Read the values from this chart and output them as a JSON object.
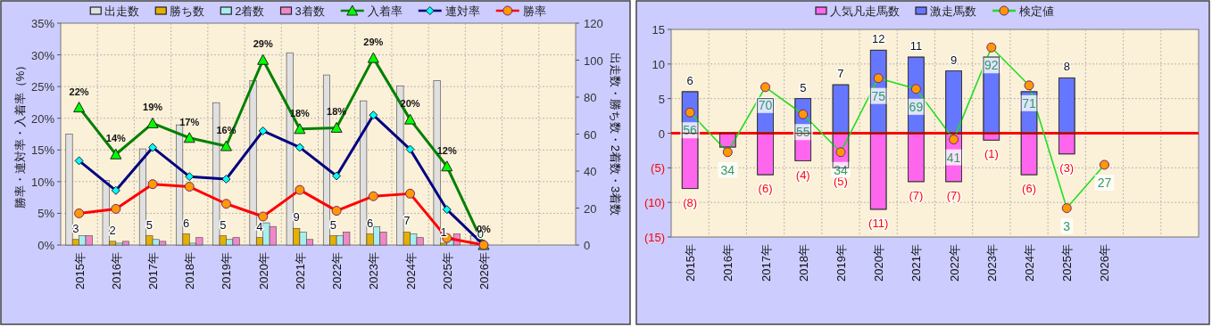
{
  "chart_data": [
    {
      "type": "bar",
      "legend": "top",
      "grid": true,
      "categories": [
        "2015年",
        "2016年",
        "2017年",
        "2018年",
        "2019年",
        "2020年",
        "2021年",
        "2022年",
        "2023年",
        "2024年",
        "2025年",
        "2026年",
        null,
        null
      ],
      "ylabel": "勝率・連対率・入着率（%）",
      "y2label": "出走数・勝ち数・2着数・3着数",
      "ylim": [
        0,
        35
      ],
      "yticks": [
        {
          "value": 0,
          "label": "0%"
        },
        {
          "value": 5,
          "label": "5%"
        },
        {
          "value": 10,
          "label": "10%"
        },
        {
          "value": 15,
          "label": "15%"
        },
        {
          "value": 20,
          "label": "20%"
        },
        {
          "value": 25,
          "label": "25%"
        },
        {
          "value": 30,
          "label": "30%"
        },
        {
          "value": 35,
          "label": "35%"
        }
      ],
      "y2lim": [
        0,
        120
      ],
      "y2ticks": [
        0,
        20,
        40,
        60,
        80,
        100,
        120
      ],
      "series": [
        {
          "name": "出走数",
          "axis": "y2",
          "color": "#e0e0e0",
          "values": [
            60,
            35,
            52,
            65,
            77,
            89,
            104,
            92,
            78,
            86,
            89,
            5,
            null,
            null
          ]
        },
        {
          "name": "勝ち数",
          "axis": "y2",
          "color": "#e6b000",
          "values": [
            3,
            2,
            5,
            6,
            5,
            4,
            9,
            5,
            6,
            7,
            1,
            0,
            null,
            null
          ],
          "value_labels": [
            "3",
            "2",
            "5",
            "6",
            "5",
            "4",
            "9",
            "5",
            "6",
            "7",
            "1",
            "0",
            null,
            null
          ]
        },
        {
          "name": "2着数",
          "axis": "y2",
          "color": "#a8eeee",
          "values": [
            5,
            1,
            3,
            1,
            3,
            12,
            7,
            5,
            10,
            6,
            4,
            0,
            null,
            null
          ]
        },
        {
          "name": "3着数",
          "axis": "y2",
          "color": "#ee88c8",
          "values": [
            5,
            2,
            2,
            4,
            4,
            10,
            3,
            7,
            7,
            4,
            6,
            0,
            null,
            null
          ]
        },
        {
          "name": "入着率",
          "type": "line",
          "axis": "y",
          "color": "#008000",
          "marker": "triangle",
          "values": [
            21.7,
            14.3,
            19.2,
            16.9,
            15.6,
            29.2,
            18.3,
            18.5,
            29.5,
            19.8,
            12.4,
            0,
            null,
            null
          ],
          "value_labels": [
            "22%",
            "14%",
            "19%",
            "17%",
            "16%",
            "29%",
            "18%",
            "18%",
            "29%",
            "20%",
            "12%",
            "0%",
            null,
            null
          ]
        },
        {
          "name": "連対率",
          "type": "line",
          "axis": "y",
          "color": "#000080",
          "marker": "diamond",
          "values": [
            13.3,
            8.6,
            15.4,
            10.8,
            10.4,
            18.0,
            15.4,
            10.9,
            20.5,
            15.1,
            5.6,
            0,
            null,
            null
          ]
        },
        {
          "name": "勝率",
          "type": "line",
          "axis": "y",
          "color": "#ff0000",
          "marker": "circle",
          "values": [
            5.0,
            5.7,
            9.6,
            9.2,
            6.5,
            4.5,
            8.7,
            5.4,
            7.7,
            8.1,
            1.1,
            0,
            null,
            null
          ]
        }
      ]
    },
    {
      "type": "bar",
      "stacked": true,
      "legend": "top",
      "grid": true,
      "categories": [
        "2015年",
        "2016年",
        "2017年",
        "2018年",
        "2019年",
        "2020年",
        "2021年",
        "2022年",
        "2023年",
        "2024年",
        "2025年",
        "2026年",
        null,
        null
      ],
      "ylim": [
        -15,
        15
      ],
      "yticks": [
        {
          "value": -15,
          "label": "(15)"
        },
        {
          "value": -10,
          "label": "(10)"
        },
        {
          "value": -5,
          "label": "(5)"
        },
        0,
        5,
        10,
        15
      ],
      "y2lim": [
        -13,
        102
      ],
      "ref_lines": [
        {
          "axis": "y",
          "value": 0,
          "color": "#ff0000"
        }
      ],
      "series": [
        {
          "name": "人気凡走馬数",
          "color": "#ff66ee",
          "values": [
            -8,
            -2,
            -6,
            -4,
            -5,
            -11,
            -7,
            -7,
            -1,
            -6,
            -3,
            null,
            null,
            null
          ],
          "value_labels": [
            "(8)",
            null,
            "(6)",
            "(4)",
            "(5)",
            "(11)",
            "(7)",
            "(7)",
            "(1)",
            "(6)",
            "(3)",
            null,
            null,
            null
          ]
        },
        {
          "name": "激走馬数",
          "color": "#6677ff",
          "values": [
            6,
            0,
            5,
            5,
            7,
            12,
            11,
            9,
            11,
            6,
            8,
            null,
            null,
            null
          ],
          "value_labels": [
            "6",
            null,
            null,
            "5",
            "7",
            "12",
            "11",
            "9",
            null,
            null,
            "8",
            null,
            null,
            null
          ]
        },
        {
          "name": "検定値",
          "type": "line",
          "axis": "y2",
          "color": "#22dd22",
          "marker": "circle",
          "values": [
            56,
            34,
            70,
            55,
            34,
            75,
            69,
            41,
            92,
            71,
            3,
            27,
            null,
            null
          ],
          "value_labels": [
            "56",
            "34",
            "70",
            "55",
            "34",
            "75",
            "69",
            "41",
            "92",
            "71",
            "3",
            "27",
            null,
            null
          ]
        }
      ]
    }
  ]
}
